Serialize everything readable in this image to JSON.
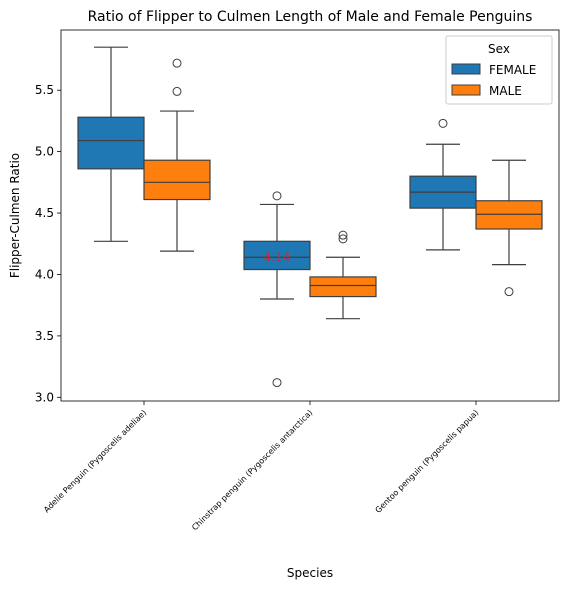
{
  "chart_data": {
    "type": "box",
    "title": "Ratio of Flipper to Culmen Length of Male and Female Penguins",
    "xlabel": "Species",
    "ylabel": "Flipper-Culmen Ratio",
    "ylim": [
      2.97,
      5.99
    ],
    "yticks": [
      "3.0",
      "3.5",
      "4.0",
      "4.5",
      "5.0",
      "5.5"
    ],
    "categories": [
      "Adelie Penguin (Pygoscelis adeliae)",
      "Chinstrap penguin (Pygoscelis antarctica)",
      "Gentoo penguin (Pygoscelis papua)"
    ],
    "legend": {
      "title": "Sex",
      "position": "top-right"
    },
    "series": [
      {
        "name": "FEMALE",
        "color": "#1f77b4",
        "boxes": [
          {
            "whisker_low": 4.27,
            "q1": 4.86,
            "median": 5.09,
            "q3": 5.28,
            "whisker_high": 5.85,
            "outliers": []
          },
          {
            "whisker_low": 3.8,
            "q1": 4.04,
            "median": 4.14,
            "q3": 4.27,
            "whisker_high": 4.57,
            "outliers": [
              4.64,
              3.12
            ]
          },
          {
            "whisker_low": 4.2,
            "q1": 4.54,
            "median": 4.67,
            "q3": 4.8,
            "whisker_high": 5.06,
            "outliers": [
              5.23
            ]
          }
        ]
      },
      {
        "name": "MALE",
        "color": "#ff7f0e",
        "boxes": [
          {
            "whisker_low": 4.19,
            "q1": 4.61,
            "median": 4.75,
            "q3": 4.93,
            "whisker_high": 5.33,
            "outliers": [
              5.72,
              5.49
            ]
          },
          {
            "whisker_low": 3.64,
            "q1": 3.82,
            "median": 3.91,
            "q3": 3.98,
            "whisker_high": 4.14,
            "outliers": [
              4.32,
              4.29
            ]
          },
          {
            "whisker_low": 4.08,
            "q1": 4.37,
            "median": 4.49,
            "q3": 4.6,
            "whisker_high": 4.93,
            "outliers": [
              3.86
            ]
          }
        ]
      }
    ],
    "annotations": [
      {
        "text": "4.14",
        "x_category": 1,
        "series": 0,
        "y": 4.14,
        "color": "#d62728"
      }
    ]
  }
}
